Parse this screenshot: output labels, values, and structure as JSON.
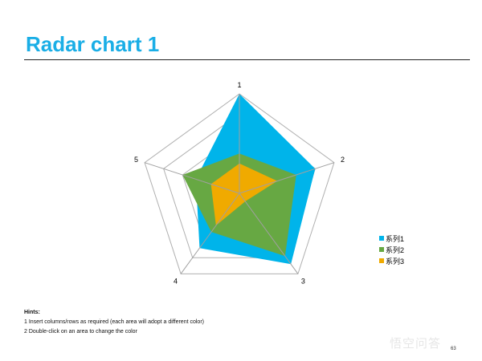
{
  "slide": {
    "title": "Radar chart 1",
    "hints_title": "Hints:",
    "hints": [
      "1  Insert columns/rows  as required  (each area will adopt  a different  color)",
      "2  Double-click  on an area to change  the color"
    ],
    "watermark": "悟空问答",
    "page_number": "63"
  },
  "chart_data": {
    "type": "radar",
    "categories": [
      "1",
      "2",
      "3",
      "4",
      "5"
    ],
    "range": [
      0,
      5
    ],
    "grid": true,
    "legend_position": "right",
    "series": [
      {
        "name": "系列1",
        "color": "#00b4ea",
        "values": [
          5,
          4,
          4.4,
          3.4,
          2.3
        ]
      },
      {
        "name": "系列2",
        "color": "#67a843",
        "values": [
          2,
          3,
          3.9,
          2.4,
          3
        ]
      },
      {
        "name": "系列3",
        "color": "#f0aa00",
        "values": [
          1.5,
          2,
          0.5,
          2,
          1.5
        ]
      }
    ]
  }
}
